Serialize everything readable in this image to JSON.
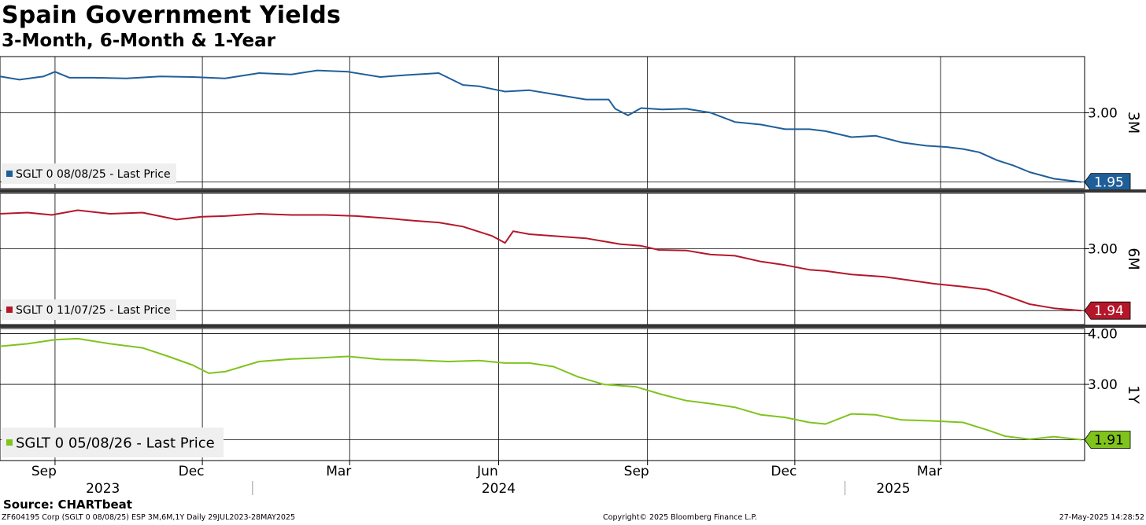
{
  "title": "Spain Government Yields",
  "subtitle": "3-Month, 6-Month & 1-Year",
  "source": "Source: CHARTbeat",
  "footer": {
    "left": "ZF604195 Corp (SGLT 0 08/08/25) ESP 3M,6M,1Y  Daily 29JUL2023-28MAY2025",
    "middle": "Copyright© 2025 Bloomberg Finance L.P.",
    "right": "27-May-2025 14:28:52"
  },
  "colors": {
    "3M": "#1f5f99",
    "6M": "#b5172a",
    "1Y": "#7fc31c",
    "grid": "#000000"
  },
  "x_axis": {
    "month_labels": [
      "Sep",
      "Dec",
      "Mar",
      "Jun",
      "Sep",
      "Dec",
      "Mar"
    ],
    "year_labels": [
      "2023",
      "2024",
      "2025"
    ]
  },
  "chart_data": [
    {
      "type": "line",
      "panel_label": "3M",
      "series": [
        {
          "name": "SGLT 0 08/08/25 - Last Price",
          "last_value_label": "1.95",
          "x": [
            "2023-07-29",
            "2023-08-10",
            "2023-08-25",
            "2023-09-01",
            "2023-09-10",
            "2023-09-25",
            "2023-10-15",
            "2023-11-05",
            "2023-11-25",
            "2023-12-15",
            "2024-01-05",
            "2024-01-25",
            "2024-02-10",
            "2024-02-29",
            "2024-03-20",
            "2024-04-05",
            "2024-04-25",
            "2024-05-10",
            "2024-05-20",
            "2024-06-05",
            "2024-06-20",
            "2024-07-05",
            "2024-07-25",
            "2024-08-08",
            "2024-08-12",
            "2024-08-20",
            "2024-08-28",
            "2024-09-10",
            "2024-09-25",
            "2024-10-10",
            "2024-10-25",
            "2024-11-10",
            "2024-11-25",
            "2024-12-10",
            "2024-12-20",
            "2025-01-05",
            "2025-01-20",
            "2025-02-05",
            "2025-02-20",
            "2025-03-05",
            "2025-03-15",
            "2025-03-25",
            "2025-04-05",
            "2025-04-15",
            "2025-04-25",
            "2025-05-10",
            "2025-05-27"
          ],
          "values": [
            3.55,
            3.5,
            3.55,
            3.62,
            3.53,
            3.53,
            3.52,
            3.55,
            3.54,
            3.52,
            3.6,
            3.58,
            3.64,
            3.62,
            3.54,
            3.57,
            3.6,
            3.42,
            3.4,
            3.32,
            3.34,
            3.28,
            3.2,
            3.2,
            3.06,
            2.96,
            3.07,
            3.05,
            3.06,
            3.0,
            2.86,
            2.82,
            2.75,
            2.75,
            2.72,
            2.63,
            2.65,
            2.55,
            2.5,
            2.48,
            2.45,
            2.4,
            2.28,
            2.2,
            2.1,
            2.0,
            1.95
          ]
        }
      ],
      "ylim": [
        1.85,
        3.85
      ],
      "y_ticks": [
        3.0
      ],
      "tick_labels": [
        "3.00"
      ]
    },
    {
      "type": "line",
      "panel_label": "6M",
      "series": [
        {
          "name": "SGLT 0 11/07/25 - Last Price",
          "last_value_label": "1.94",
          "x": [
            "2023-07-29",
            "2023-08-15",
            "2023-08-30",
            "2023-09-15",
            "2023-10-05",
            "2023-10-25",
            "2023-11-15",
            "2023-12-01",
            "2023-12-15",
            "2024-01-05",
            "2024-01-25",
            "2024-02-15",
            "2024-03-05",
            "2024-03-25",
            "2024-04-10",
            "2024-04-25",
            "2024-05-10",
            "2024-05-28",
            "2024-06-05",
            "2024-06-10",
            "2024-06-20",
            "2024-07-05",
            "2024-07-25",
            "2024-08-15",
            "2024-08-28",
            "2024-09-08",
            "2024-09-25",
            "2024-10-10",
            "2024-10-25",
            "2024-11-10",
            "2024-11-25",
            "2024-12-10",
            "2024-12-20",
            "2025-01-05",
            "2025-01-25",
            "2025-02-10",
            "2025-02-25",
            "2025-03-15",
            "2025-03-30",
            "2025-04-10",
            "2025-04-25",
            "2025-05-10",
            "2025-05-27"
          ],
          "values": [
            3.6,
            3.62,
            3.58,
            3.66,
            3.6,
            3.62,
            3.5,
            3.55,
            3.56,
            3.6,
            3.58,
            3.58,
            3.56,
            3.52,
            3.48,
            3.45,
            3.38,
            3.22,
            3.1,
            3.3,
            3.25,
            3.22,
            3.18,
            3.08,
            3.05,
            2.98,
            2.97,
            2.9,
            2.88,
            2.78,
            2.72,
            2.64,
            2.62,
            2.56,
            2.52,
            2.46,
            2.4,
            2.35,
            2.3,
            2.2,
            2.05,
            1.98,
            1.94
          ]
        }
      ],
      "ylim": [
        1.7,
        3.95
      ],
      "y_ticks": [
        3.0
      ],
      "tick_labels": [
        "3.00"
      ]
    },
    {
      "type": "line",
      "panel_label": "1Y",
      "series": [
        {
          "name": "SGLT 0 05/08/26 - Last Price",
          "last_value_label": "1.91",
          "x": [
            "2023-07-29",
            "2023-08-15",
            "2023-09-01",
            "2023-09-15",
            "2023-10-05",
            "2023-10-25",
            "2023-11-10",
            "2023-11-25",
            "2023-12-05",
            "2023-12-15",
            "2024-01-05",
            "2024-01-25",
            "2024-02-10",
            "2024-02-29",
            "2024-03-20",
            "2024-04-10",
            "2024-05-01",
            "2024-05-20",
            "2024-06-05",
            "2024-06-20",
            "2024-07-05",
            "2024-07-20",
            "2024-08-05",
            "2024-08-25",
            "2024-09-10",
            "2024-09-25",
            "2024-10-10",
            "2024-10-25",
            "2024-11-10",
            "2024-11-25",
            "2024-12-10",
            "2024-12-20",
            "2025-01-05",
            "2025-01-20",
            "2025-02-05",
            "2025-02-25",
            "2025-03-15",
            "2025-03-30",
            "2025-04-10",
            "2025-04-25",
            "2025-05-10",
            "2025-05-27"
          ],
          "values": [
            3.75,
            3.8,
            3.88,
            3.9,
            3.8,
            3.72,
            3.55,
            3.38,
            3.22,
            3.25,
            3.45,
            3.5,
            3.52,
            3.55,
            3.49,
            3.48,
            3.45,
            3.47,
            3.42,
            3.42,
            3.35,
            3.15,
            3.0,
            2.95,
            2.8,
            2.68,
            2.62,
            2.55,
            2.4,
            2.35,
            2.25,
            2.22,
            2.42,
            2.4,
            2.3,
            2.28,
            2.25,
            2.1,
            1.98,
            1.92,
            1.97,
            1.91
          ]
        }
      ],
      "ylim": [
        1.5,
        4.1
      ],
      "y_ticks": [
        4.0,
        3.0
      ],
      "tick_labels": [
        "4.00",
        "3.00"
      ]
    }
  ]
}
